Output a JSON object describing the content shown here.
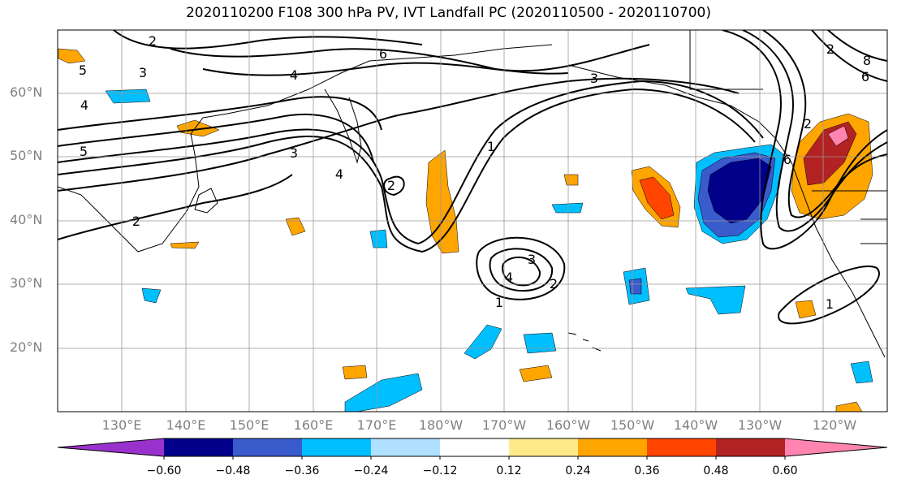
{
  "title": "2020110200 F108 300 hPa PV, IVT Landfall PC (2020110500 - 2020110700)",
  "lat_labels": [
    "60°N",
    "50°N",
    "40°N",
    "30°N",
    "20°N"
  ],
  "lon_labels": [
    "130°E",
    "140°E",
    "150°E",
    "160°E",
    "170°E",
    "180°W",
    "170°W",
    "160°W",
    "150°W",
    "140°W",
    "130°W",
    "120°W"
  ],
  "colorbar": {
    "labels": [
      "−0.60",
      "−0.48",
      "−0.36",
      "−0.24",
      "−0.12",
      "0.12",
      "0.24",
      "0.36",
      "0.48",
      "0.60"
    ],
    "colors": [
      "#9932cc",
      "#00008b",
      "#3a5bcc",
      "#00bfff",
      "#b0e0ff",
      "#ffffff",
      "#ffea8a",
      "#ffa500",
      "#ff4500",
      "#b22222",
      "#ff85b0"
    ]
  },
  "contour_labels": [
    "2",
    "3",
    "4",
    "5",
    "6",
    "2",
    "5",
    "4",
    "2",
    "1",
    "3",
    "3",
    "4",
    "6",
    "2",
    "2",
    "3",
    "4",
    "2",
    "1",
    "1",
    "8",
    "6"
  ]
}
